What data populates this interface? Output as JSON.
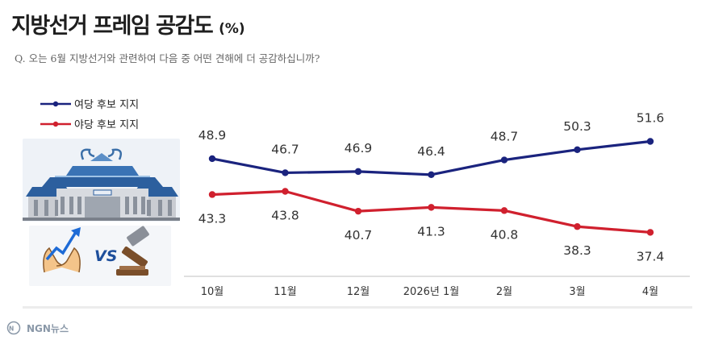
{
  "title": "지방선거 프레임 공감도",
  "title_unit": "(%)",
  "question": "Q. 오는 6월 지방선거와 관련하여 다음 중 어떤 견해에 더 공감하십니까?",
  "watermark": "NGN뉴스",
  "colors": {
    "ruling": "#1a237e",
    "opposition": "#d0202e",
    "baseline": "#e0e0e0",
    "label": "#333333"
  },
  "chart_data": {
    "type": "line",
    "title": "지방선거 프레임 공감도",
    "unit": "%",
    "categories": [
      "10월",
      "11월",
      "12월",
      "2026년 1월",
      "2월",
      "3월",
      "4월"
    ],
    "series": [
      {
        "name": "여당 후보 지지",
        "values": [
          48.9,
          46.7,
          46.9,
          46.4,
          48.7,
          50.3,
          51.6
        ]
      },
      {
        "name": "야당 후보 지지",
        "values": [
          43.3,
          43.8,
          40.7,
          41.3,
          40.8,
          38.3,
          37.4
        ]
      }
    ],
    "xlabel": "",
    "ylabel": "",
    "grid": false,
    "legend": "top-left"
  }
}
